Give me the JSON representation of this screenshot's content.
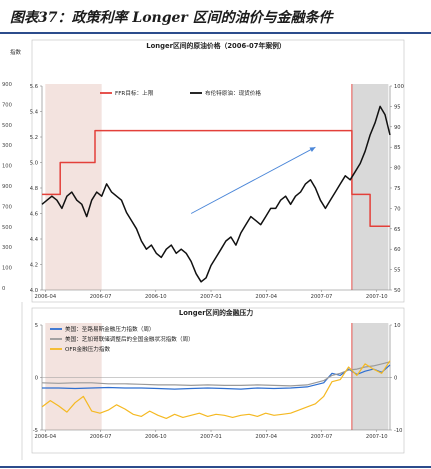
{
  "header": {
    "title": "图表37：政策利率 Longer 区间的油价与金融条件"
  },
  "chart_data": [
    {
      "type": "line",
      "title": "Longer区间的原油价格（2006-07年案例）",
      "left_axis_label": "指数",
      "x_tick_labels": [
        "2006-04",
        "2006-07",
        "2006-10",
        "2007-01",
        "2007-04",
        "2007-07",
        "2007-10"
      ],
      "x_range": [
        0,
        21
      ],
      "left_ylim": [
        4.0,
        5.6
      ],
      "left_yticks": [
        "4.0",
        "4.2",
        "4.4",
        "4.6",
        "4.8",
        "5.0",
        "5.2",
        "5.4",
        "5.6"
      ],
      "right_ylim": [
        50,
        100
      ],
      "right_yticks": [
        "50",
        "55",
        "60",
        "65",
        "70",
        "75",
        "80",
        "85",
        "90",
        "95",
        "100"
      ],
      "outer_left_ticks": [
        "900",
        "700",
        "500",
        "300",
        "100",
        "900",
        "700",
        "500",
        "300",
        "100",
        "0"
      ],
      "legend": [
        "FFR目标：上限",
        "布伦特原油：现货价格"
      ],
      "shaded_periods": [
        {
          "from": 0.2,
          "to": 3.6,
          "color": "#f3e3df"
        },
        {
          "from": 18.7,
          "to": 20.9,
          "color": "#d9d9d9"
        }
      ],
      "marker_line_x": 18.7,
      "annotation_arrow": {
        "from": [
          9.0,
          4.6
        ],
        "to": [
          16.5,
          5.12
        ]
      },
      "series": [
        {
          "name": "FFR目标：上限",
          "axis": "left",
          "color": "#e3403a",
          "x": [
            0.0,
            1.1,
            1.1,
            3.2,
            3.2,
            18.7,
            18.7,
            19.8,
            19.8,
            21.0
          ],
          "values": [
            4.75,
            4.75,
            5.0,
            5.0,
            5.25,
            5.25,
            4.75,
            4.75,
            4.5,
            4.5
          ]
        },
        {
          "name": "布伦特原油：现货价格",
          "axis": "right",
          "color": "#111111",
          "x": [
            0.0,
            0.3,
            0.6,
            0.9,
            1.2,
            1.5,
            1.8,
            2.1,
            2.4,
            2.7,
            3.0,
            3.3,
            3.6,
            3.9,
            4.2,
            4.5,
            4.8,
            5.1,
            5.4,
            5.7,
            6.0,
            6.3,
            6.6,
            6.9,
            7.2,
            7.5,
            7.8,
            8.1,
            8.4,
            8.7,
            9.0,
            9.3,
            9.6,
            9.9,
            10.2,
            10.5,
            10.8,
            11.1,
            11.4,
            11.7,
            12.0,
            12.3,
            12.6,
            12.9,
            13.2,
            13.5,
            13.8,
            14.1,
            14.4,
            14.7,
            15.0,
            15.3,
            15.6,
            15.9,
            16.2,
            16.5,
            16.8,
            17.1,
            17.4,
            17.7,
            18.0,
            18.3,
            18.6,
            18.9,
            19.2,
            19.5,
            19.8,
            20.1,
            20.4,
            20.7,
            21.0
          ],
          "values": [
            71,
            72,
            73,
            72,
            70,
            73,
            74,
            72,
            71,
            68,
            72,
            74,
            73,
            76,
            74,
            73,
            72,
            69,
            67,
            65,
            62,
            60,
            61,
            59,
            58,
            60,
            61,
            59,
            60,
            59,
            57,
            54,
            52,
            53,
            56,
            58,
            60,
            62,
            63,
            61,
            64,
            66,
            68,
            67,
            66,
            68,
            70,
            70,
            72,
            73,
            71,
            73,
            74,
            76,
            77,
            75,
            72,
            70,
            72,
            74,
            76,
            78,
            77,
            79,
            81,
            84,
            88,
            91,
            95,
            93,
            88
          ]
        }
      ]
    },
    {
      "type": "line",
      "title": "Longer区间的金融压力",
      "x_tick_labels": [
        "2006-04",
        "2006-07",
        "2006-10",
        "2007-01",
        "2007-04",
        "2007-07",
        "2007-10"
      ],
      "x_range": [
        0,
        21
      ],
      "left_ylim": [
        -5,
        5
      ],
      "left_yticks": [
        "-5",
        "0",
        "5"
      ],
      "right_ylim": [
        -10,
        10
      ],
      "right_yticks": [
        "-10",
        "0",
        "10"
      ],
      "legend": [
        "美国：圣路易斯金融压力指数（周）",
        "美国：芝加哥联储调整后的全国金融状况指数（周）",
        "OFR金融压力指数"
      ],
      "shaded_periods": [
        {
          "from": 0.2,
          "to": 3.6,
          "color": "#f3e3df"
        },
        {
          "from": 18.7,
          "to": 20.9,
          "color": "#d9d9d9"
        }
      ],
      "marker_line_x": 18.7,
      "series": [
        {
          "name": "美国：圣路易斯金融压力指数（周）",
          "color": "#2f6fd0",
          "x": [
            0,
            1,
            2,
            3,
            4,
            5,
            6,
            7,
            8,
            9,
            10,
            11,
            12,
            13,
            14,
            15,
            16,
            17,
            17.5,
            18,
            18.5,
            19,
            19.5,
            20,
            20.5,
            21
          ],
          "values": [
            -1.0,
            -1.0,
            -1.05,
            -1.0,
            -0.95,
            -1.0,
            -1.0,
            -1.05,
            -1.1,
            -1.05,
            -1.0,
            -1.05,
            -1.1,
            -1.0,
            -1.05,
            -1.0,
            -0.9,
            -0.5,
            0.4,
            0.2,
            0.8,
            0.3,
            0.6,
            0.8,
            0.5,
            1.2
          ]
        },
        {
          "name": "美国：芝加哥联储调整后的全国金融状况指数（周）",
          "color": "#9a9a9a",
          "x": [
            0,
            1,
            2,
            3,
            4,
            5,
            6,
            7,
            8,
            9,
            10,
            11,
            12,
            13,
            14,
            15,
            16,
            17,
            17.5,
            18,
            18.5,
            19,
            19.5,
            20,
            20.5,
            21
          ],
          "values": [
            -0.5,
            -0.55,
            -0.5,
            -0.5,
            -0.6,
            -0.6,
            -0.65,
            -0.7,
            -0.7,
            -0.75,
            -0.7,
            -0.75,
            -0.75,
            -0.7,
            -0.75,
            -0.8,
            -0.7,
            -0.3,
            0.2,
            0.4,
            0.7,
            0.8,
            1.0,
            1.1,
            1.3,
            1.5
          ]
        },
        {
          "name": "OFR金融压力指数",
          "color": "#f5b922",
          "x": [
            0,
            0.5,
            1,
            1.5,
            2,
            2.5,
            3,
            3.5,
            4,
            4.5,
            5,
            5.5,
            6,
            6.5,
            7,
            7.5,
            8,
            8.5,
            9,
            9.5,
            10,
            10.5,
            11,
            11.5,
            12,
            12.5,
            13,
            13.5,
            14,
            14.5,
            15,
            15.5,
            16,
            16.5,
            17,
            17.5,
            18,
            18.5,
            19,
            19.5,
            20,
            20.5,
            21
          ],
          "values": [
            -2.8,
            -2.2,
            -2.7,
            -3.3,
            -2.4,
            -1.8,
            -3.2,
            -3.4,
            -3.1,
            -2.6,
            -3.0,
            -3.5,
            -3.7,
            -3.2,
            -3.6,
            -3.9,
            -3.5,
            -3.8,
            -3.6,
            -3.4,
            -3.7,
            -3.5,
            -3.6,
            -3.8,
            -3.6,
            -3.5,
            -3.7,
            -3.4,
            -3.6,
            -3.5,
            -3.4,
            -3.1,
            -2.8,
            -2.5,
            -1.8,
            -0.4,
            -0.2,
            1.0,
            0.2,
            1.3,
            0.8,
            0.4,
            1.6
          ]
        }
      ]
    }
  ]
}
